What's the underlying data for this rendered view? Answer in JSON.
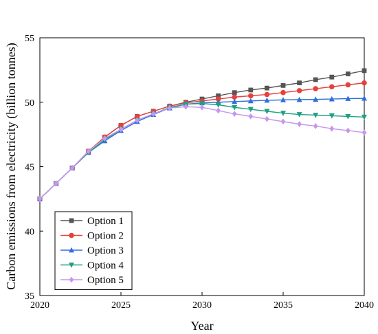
{
  "chart_data": {
    "type": "line",
    "xlabel": "Year",
    "ylabel": "Carbon emissions from electricity (billion tonnes)",
    "xlim": [
      2020,
      2040
    ],
    "ylim": [
      35,
      55
    ],
    "xticks": [
      2020,
      2025,
      2030,
      2035,
      2040
    ],
    "yticks": [
      35,
      40,
      45,
      50,
      55
    ],
    "x": [
      2020,
      2021,
      2022,
      2023,
      2024,
      2025,
      2026,
      2027,
      2028,
      2029,
      2030,
      2031,
      2032,
      2033,
      2034,
      2035,
      2036,
      2037,
      2038,
      2039,
      2040
    ],
    "grid": false,
    "legend_position": "bottom-left",
    "series": [
      {
        "name": "Option 1",
        "color": "#555555",
        "marker": "square",
        "values": [
          42.5,
          43.7,
          44.9,
          46.2,
          47.3,
          48.2,
          48.9,
          49.3,
          49.7,
          50.0,
          50.25,
          50.5,
          50.75,
          50.95,
          51.1,
          51.3,
          51.5,
          51.75,
          51.95,
          52.2,
          52.45
        ]
      },
      {
        "name": "Option 2",
        "color": "#e8403a",
        "marker": "circle",
        "values": [
          42.5,
          43.7,
          44.9,
          46.2,
          47.3,
          48.2,
          48.9,
          49.3,
          49.7,
          49.95,
          50.1,
          50.25,
          50.4,
          50.5,
          50.6,
          50.75,
          50.9,
          51.05,
          51.2,
          51.35,
          51.5
        ]
      },
      {
        "name": "Option 3",
        "color": "#2f6fde",
        "marker": "triangle-up",
        "values": [
          42.5,
          43.7,
          44.9,
          46.1,
          47.0,
          47.8,
          48.5,
          49.05,
          49.55,
          49.85,
          49.95,
          50.0,
          50.05,
          50.1,
          50.15,
          50.18,
          50.2,
          50.22,
          50.25,
          50.28,
          50.3
        ]
      },
      {
        "name": "Option 4",
        "color": "#20a080",
        "marker": "triangle-down",
        "values": [
          42.5,
          43.7,
          44.9,
          46.1,
          47.1,
          47.9,
          48.6,
          49.1,
          49.6,
          49.85,
          49.9,
          49.8,
          49.6,
          49.45,
          49.3,
          49.15,
          49.05,
          49.0,
          48.95,
          48.9,
          48.85
        ]
      },
      {
        "name": "Option 5",
        "color": "#c896ee",
        "marker": "diamond",
        "values": [
          42.5,
          43.7,
          44.9,
          46.2,
          47.2,
          47.9,
          48.6,
          49.1,
          49.55,
          49.65,
          49.6,
          49.35,
          49.1,
          48.9,
          48.7,
          48.5,
          48.3,
          48.15,
          47.95,
          47.8,
          47.65
        ]
      }
    ]
  }
}
